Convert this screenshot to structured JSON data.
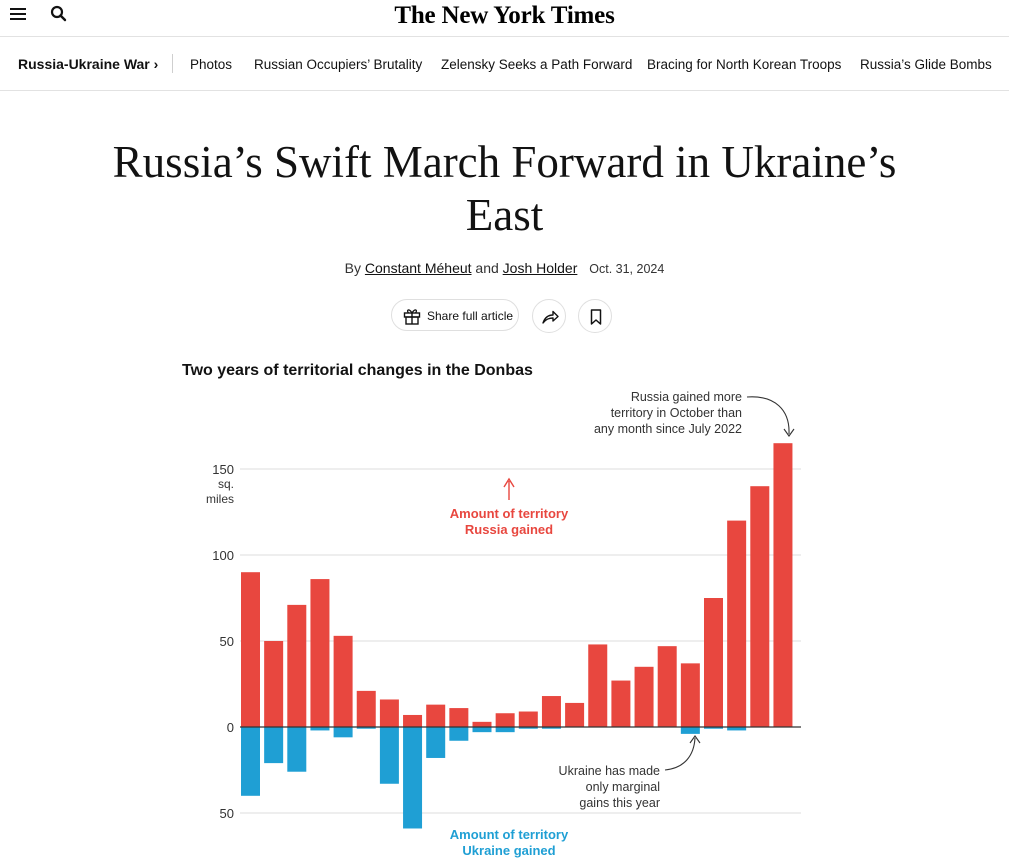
{
  "masthead": {
    "logo": "The New York Times"
  },
  "nav": {
    "section": "Russia-Ukraine War ›",
    "links": [
      "Photos",
      "Russian Occupiers’ Brutality",
      "Zelensky Seeks a Path Forward",
      "Bracing for North Korean Troops",
      "Russia’s Glide Bombs"
    ]
  },
  "article": {
    "headline": "Russia’s Swift March Forward in Ukraine’s East",
    "byline_prefix": "By",
    "author1": "Constant Méheut",
    "byline_and": "and",
    "author2": "Josh Holder",
    "date": "Oct. 31, 2024",
    "share_label": "Share full article"
  },
  "icons": {
    "menu": "menu-icon",
    "search": "search-icon",
    "gift": "gift-icon",
    "share": "share-arrow-icon",
    "bookmark": "bookmark-icon"
  },
  "colors": {
    "russia": "#e8473f",
    "ukraine": "#1f9fd4",
    "grid": "#dcdcdc",
    "baseline": "#333333"
  },
  "chart_data": {
    "type": "bar",
    "title": "Two years of territorial changes in the Donbas",
    "y_unit": [
      "sq.",
      "miles"
    ],
    "ylim": [
      -55,
      165
    ],
    "y_ticks": [
      {
        "value": 150,
        "label": "150"
      },
      {
        "value": 100,
        "label": "100"
      },
      {
        "value": 50,
        "label": "50"
      },
      {
        "value": 0,
        "label": "0"
      },
      {
        "value": -50,
        "label": "50"
      }
    ],
    "grid": true,
    "series": [
      {
        "name": "Amount of territory Russia gained",
        "values": [
          90,
          50,
          71,
          86,
          53,
          21,
          16,
          7,
          13,
          11,
          3,
          8,
          9,
          18,
          14,
          48,
          27,
          35,
          47,
          37,
          75,
          120,
          140,
          165
        ]
      },
      {
        "name": "Amount of territory Ukraine gained",
        "values": [
          -40,
          -21,
          -26,
          -2,
          -6,
          -1,
          -33,
          -59,
          -18,
          -8,
          -3,
          -3,
          -1,
          -1,
          0,
          0,
          0,
          0,
          0,
          -4,
          -1,
          -2,
          0,
          0
        ]
      }
    ],
    "annotations": [
      {
        "text": "Russia gained more territory in October than any month since July 2022"
      },
      {
        "text": "Ukraine has made only marginal gains this year"
      }
    ],
    "labels": {
      "russia": [
        "Amount of territory",
        "Russia gained"
      ],
      "ukraine": [
        "Amount of territory",
        "Ukraine gained"
      ]
    }
  }
}
